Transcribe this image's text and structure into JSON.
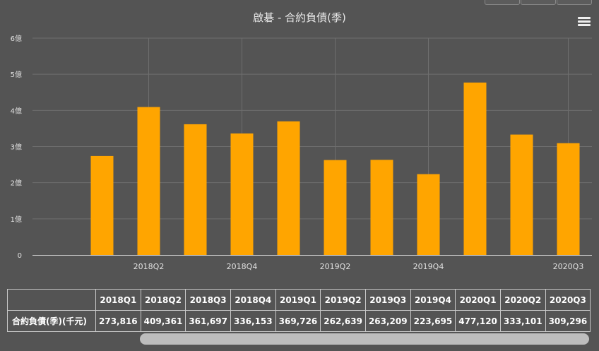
{
  "title": "啟碁 - 合約負債(季)",
  "chart_data": {
    "type": "bar",
    "title": "啟碁 - 合約負債(季)",
    "categories": [
      "2018Q1",
      "2018Q2",
      "2018Q3",
      "2018Q4",
      "2019Q1",
      "2019Q2",
      "2019Q3",
      "2019Q4",
      "2020Q1",
      "2020Q2",
      "2020Q3"
    ],
    "values": [
      273816,
      409361,
      361697,
      336153,
      369726,
      262639,
      263209,
      223695,
      477120,
      333101,
      309296
    ],
    "x_tick_labels": [
      "2018Q2",
      "2018Q4",
      "2019Q2",
      "2019Q4",
      "2020Q3"
    ],
    "y_tick_labels": [
      "0",
      "1億",
      "2億",
      "3億",
      "4億",
      "5億",
      "6億"
    ],
    "ylim": [
      0,
      600000
    ],
    "bar_color": "#FFA500",
    "grid": true
  },
  "table": {
    "row_label": "合約負債(季)(千元)",
    "headers": [
      "2018Q1",
      "2018Q2",
      "2018Q3",
      "2018Q4",
      "2019Q1",
      "2019Q2",
      "2019Q3",
      "2019Q4",
      "2020Q1",
      "2020Q2",
      "2020Q3"
    ],
    "cells": [
      "273,816",
      "409,361",
      "361,697",
      "336,153",
      "369,726",
      "262,639",
      "263,209",
      "223,695",
      "477,120",
      "333,101",
      "309,296"
    ]
  }
}
